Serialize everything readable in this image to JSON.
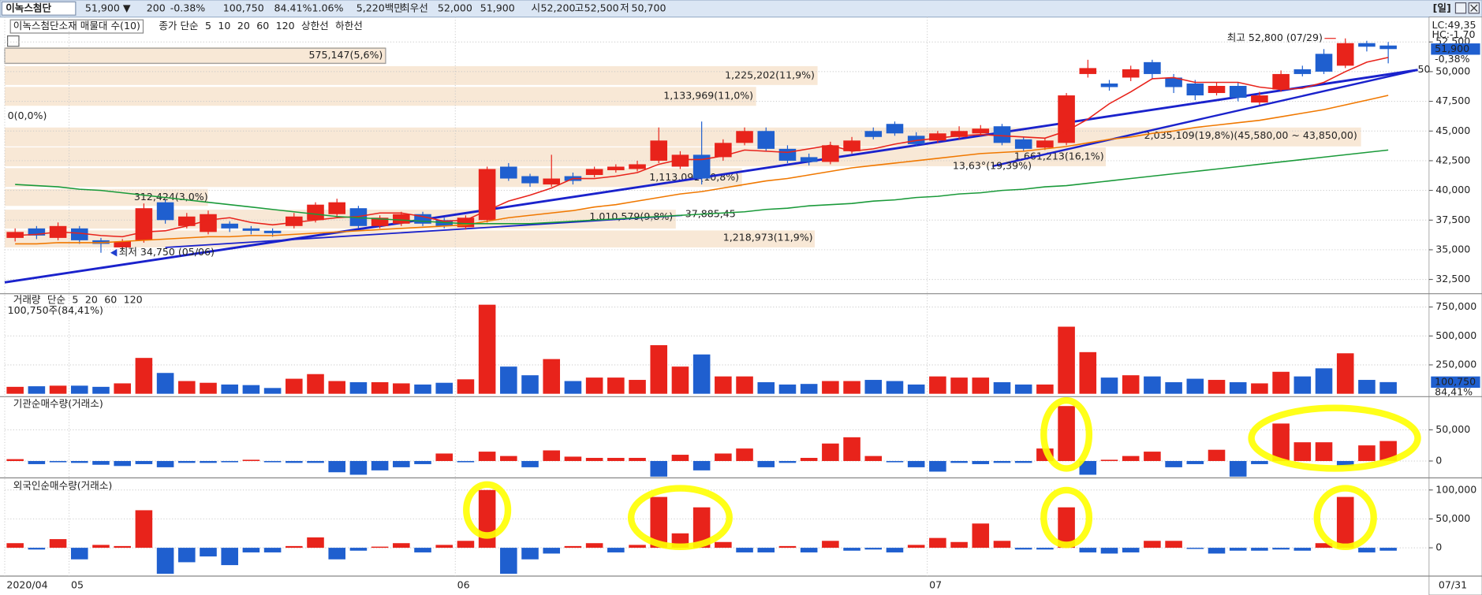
{
  "header": {
    "items": [
      "이녹스첨단",
      "51,900 ▼",
      "200",
      "-0.38%",
      "100,750",
      "84.41%",
      "1.06%",
      "5,220백만",
      "최우선",
      "52,000",
      "51,900",
      "시",
      "52,200",
      "고",
      "52,500",
      "저",
      "50,700"
    ],
    "period": "[일]"
  },
  "chart_data": [
    {
      "type": "candlestick",
      "title": "이녹스첨단소재 매물대 수(10)",
      "legend_label": "종가 단순",
      "categories": [
        "2020/04",
        null,
        null,
        "05",
        null,
        null,
        null,
        null,
        null,
        null,
        null,
        null,
        null,
        null,
        null,
        null,
        null,
        null,
        null,
        null,
        null,
        "06",
        null,
        null,
        null,
        null,
        null,
        null,
        null,
        null,
        null,
        null,
        null,
        null,
        null,
        null,
        null,
        null,
        null,
        null,
        null,
        null,
        null,
        "07",
        null,
        null,
        null,
        null,
        null,
        null,
        null,
        null,
        null,
        null,
        null,
        null,
        null,
        null,
        null,
        null,
        null,
        null,
        null,
        null,
        "07/31"
      ],
      "open": [
        36000,
        36800,
        36000,
        36800,
        35800,
        35200,
        35800,
        39000,
        37000,
        36500,
        37200,
        36800,
        36600,
        37000,
        37500,
        38000,
        38500,
        37000,
        37200,
        38000,
        37500,
        36900,
        37500,
        42000,
        41200,
        40500,
        41200,
        41300,
        41700,
        41800,
        42500,
        42000,
        43000,
        42800,
        44000,
        45000,
        43500,
        42800,
        42400,
        43300,
        45000,
        45600,
        44600,
        44200,
        44500,
        44800,
        45400,
        44300,
        43600,
        44000,
        49800,
        49000,
        49500,
        50800,
        49500,
        49000,
        48200,
        48800,
        47400,
        48500,
        50200,
        51500,
        50500,
        52400,
        52200
      ],
      "high": [
        36800,
        37000,
        37300,
        37000,
        36000,
        35900,
        38900,
        39200,
        38100,
        38300,
        37400,
        37000,
        36800,
        38100,
        39000,
        39300,
        38700,
        37900,
        38200,
        38200,
        37700,
        37900,
        42000,
        42300,
        41400,
        43000,
        41500,
        42000,
        42200,
        42500,
        45300,
        43300,
        45800,
        44300,
        45300,
        45300,
        43800,
        43100,
        44100,
        44500,
        45300,
        45800,
        44900,
        45000,
        45400,
        45500,
        45600,
        44500,
        44400,
        48200,
        51000,
        49300,
        50500,
        51000,
        49800,
        49300,
        49100,
        49100,
        48300,
        50100,
        50500,
        51900,
        52800,
        52600,
        52500
      ],
      "low": [
        35700,
        35900,
        35800,
        35500,
        34750,
        35000,
        35600,
        37200,
        36800,
        36300,
        36500,
        36300,
        36100,
        36800,
        37300,
        37800,
        36800,
        36800,
        37000,
        37000,
        36800,
        36700,
        37300,
        40800,
        40300,
        40300,
        40500,
        41100,
        41500,
        41600,
        42300,
        41800,
        40500,
        42500,
        43800,
        43300,
        42300,
        42100,
        42200,
        43100,
        44300,
        44600,
        43700,
        44000,
        44300,
        44600,
        43800,
        43300,
        43400,
        43800,
        49500,
        48400,
        49200,
        49400,
        48200,
        47600,
        48000,
        47500,
        47200,
        48300,
        49600,
        49800,
        50300,
        51700,
        50700
      ],
      "close": [
        36500,
        36200,
        37000,
        35800,
        35500,
        35700,
        38500,
        37500,
        37800,
        38000,
        36800,
        36600,
        36400,
        37800,
        38800,
        39000,
        37000,
        37700,
        38000,
        37200,
        37000,
        37700,
        41800,
        41000,
        40600,
        41000,
        40800,
        41800,
        42000,
        42200,
        44200,
        43000,
        41000,
        44000,
        45000,
        43500,
        42500,
        42400,
        43800,
        44200,
        44500,
        44800,
        43900,
        44800,
        45000,
        45200,
        44000,
        43500,
        44200,
        48000,
        50300,
        48700,
        50200,
        49800,
        48700,
        48000,
        48800,
        47800,
        48000,
        49800,
        49800,
        50000,
        52400,
        52100,
        51900
      ],
      "up_color": "#e8231b",
      "down_color": "#1f5fcf",
      "series": [
        {
          "name": "5",
          "color": "#e8231b",
          "values": [
            36200,
            36300,
            36500,
            36400,
            36200,
            36100,
            36500,
            36600,
            37000,
            37500,
            37700,
            37300,
            37100,
            37300,
            37500,
            37700,
            37800,
            38100,
            38100,
            37800,
            37400,
            37500,
            38300,
            39100,
            39600,
            40200,
            41000,
            41000,
            41200,
            41500,
            42200,
            42600,
            42600,
            42900,
            43400,
            43300,
            43200,
            43500,
            43800,
            43300,
            43500,
            43900,
            44200,
            44400,
            44600,
            44700,
            44600,
            44500,
            44400,
            45000,
            46000,
            47300,
            48300,
            49400,
            49500,
            49100,
            49100,
            49100,
            48700,
            48500,
            48600,
            49100,
            50000,
            50800,
            51200
          ]
        },
        {
          "name": "10",
          "color": "#1f3fcf"
        },
        {
          "name": "20",
          "color": "#f07800",
          "values": [
            35500,
            35500,
            35600,
            35600,
            35600,
            35700,
            35800,
            35900,
            36000,
            36100,
            36100,
            36200,
            36200,
            36300,
            36400,
            36500,
            36600,
            36700,
            36800,
            36900,
            37000,
            37100,
            37400,
            37700,
            37900,
            38100,
            38300,
            38600,
            38800,
            39100,
            39400,
            39700,
            39900,
            40200,
            40500,
            40800,
            41000,
            41300,
            41600,
            41900,
            42100,
            42300,
            42500,
            42700,
            42900,
            43100,
            43200,
            43300,
            43500,
            43700,
            44000,
            44300,
            44500,
            44800,
            45000,
            45300,
            45500,
            45700,
            45900,
            46200,
            46500,
            46800,
            47200,
            47600,
            48000
          ]
        },
        {
          "name": "60",
          "color": "#1a9a3a",
          "values": [
            40500,
            40400,
            40300,
            40100,
            40000,
            39800,
            39600,
            39400,
            39200,
            39000,
            38800,
            38600,
            38400,
            38200,
            38000,
            37800,
            37700,
            37600,
            37500,
            37400,
            37300,
            37200,
            37200,
            37200,
            37200,
            37300,
            37400,
            37500,
            37600,
            37700,
            37800,
            37900,
            38000,
            38100,
            38200,
            38400,
            38500,
            38700,
            38800,
            38900,
            39100,
            39200,
            39400,
            39500,
            39700,
            39800,
            40000,
            40100,
            40300,
            40400,
            40600,
            40800,
            41000,
            41200,
            41400,
            41600,
            41800,
            42000,
            42200,
            42400,
            42600,
            42800,
            43000,
            43200,
            43400
          ]
        },
        {
          "name": "120",
          "color": "#555555"
        },
        {
          "name": "상한선",
          "color": "#e8231b"
        },
        {
          "name": "하한선",
          "color": "#20a8c0"
        }
      ],
      "ylim": [
        31300,
        54600
      ],
      "yticks": [
        {
          "value": 32500,
          "label": "32,500"
        },
        {
          "value": 35000,
          "label": "35,000"
        },
        {
          "value": 37500,
          "label": "37,500"
        },
        {
          "value": 40000,
          "label": "40,000"
        },
        {
          "value": 42500,
          "label": "42,500"
        },
        {
          "value": 45000,
          "label": "45,000"
        },
        {
          "value": 47500,
          "label": "47,500"
        },
        {
          "value": 50000,
          "label": "50,000"
        },
        {
          "value": 52500,
          "label": "52,500"
        }
      ],
      "volume_profile": [
        "575,147(5,6%)",
        "1,225,202(11,9%)",
        "1,133,969(11,0%)",
        "0(0,0%)",
        "2,035,109(19,8%)(45,580,00 ~ 43,850,00)",
        "1,661,213(16,1%)",
        "1,113,091(10,8%)",
        "312,424(3,0%)",
        "1,010,579(9,8%)",
        "1,218,973(11,9%)"
      ],
      "annotations": {
        "high": "최고 52,800 (07/29)",
        "low": "최저 34,750 (05/06)",
        "trend_value": "37,885,45",
        "trend_end": "50",
        "angle": "13,63°(19,39%)"
      },
      "right_labels": {
        "lc": "LC:49,35",
        "hc": "HC:-1,70",
        "last": "51,900",
        "change": "-0,38%"
      }
    },
    {
      "type": "bar",
      "title": "거래량",
      "legend_label": "단순",
      "subtitle": "100,750주(84,41%)",
      "values": [
        60000,
        65000,
        70000,
        70000,
        60000,
        90000,
        310000,
        180000,
        110000,
        95000,
        80000,
        75000,
        50000,
        130000,
        170000,
        110000,
        100000,
        100000,
        90000,
        80000,
        95000,
        125000,
        770000,
        235000,
        160000,
        300000,
        110000,
        140000,
        140000,
        120000,
        420000,
        235000,
        340000,
        150000,
        150000,
        100000,
        80000,
        85000,
        110000,
        110000,
        120000,
        110000,
        80000,
        150000,
        140000,
        140000,
        100000,
        80000,
        80000,
        580000,
        360000,
        140000,
        160000,
        150000,
        100000,
        130000,
        120000,
        100000,
        90000,
        190000,
        150000,
        220000,
        350000,
        120000,
        100750
      ],
      "series": [
        {
          "name": "5",
          "color": "#d020d0"
        },
        {
          "name": "20",
          "color": "#e0a000"
        },
        {
          "name": "60",
          "color": "#1a9a3a"
        },
        {
          "name": "120",
          "color": "#888888"
        }
      ],
      "ylim": [
        -25000,
        865000
      ],
      "yticks": [
        {
          "value": 250000,
          "label": "250,000"
        },
        {
          "value": 500000,
          "label": "500,000"
        },
        {
          "value": 750000,
          "label": "750,000"
        }
      ],
      "last_label": "100,750",
      "last_pct": "84,41%"
    },
    {
      "type": "bar",
      "title": "기관순매수량(거래소)",
      "positive_color": "#e8231b",
      "negative_color": "#1f5fcf",
      "values": [
        3000,
        -5000,
        -2000,
        -3000,
        -6000,
        -8000,
        -5000,
        -10000,
        -3000,
        -3000,
        -2000,
        2000,
        -2000,
        -3000,
        -3000,
        -18000,
        -22000,
        -15000,
        -10000,
        -5000,
        12000,
        -2000,
        15000,
        8000,
        -10000,
        17000,
        7000,
        5000,
        5000,
        5000,
        -25000,
        10000,
        -15000,
        12000,
        20000,
        -10000,
        -3000,
        5000,
        28000,
        38000,
        8000,
        -2000,
        -10000,
        -17000,
        -3000,
        -5000,
        -3000,
        -3000,
        20000,
        88000,
        -22000,
        2000,
        8000,
        15000,
        -10000,
        -5000,
        18000,
        -25000,
        -5000,
        60000,
        30000,
        30000,
        -8000,
        25000,
        32000
      ],
      "ylim": [
        -27000,
        103000
      ],
      "yticks": [
        0,
        {
          "value": 50000,
          "label": "50,000"
        }
      ]
    },
    {
      "type": "bar",
      "title": "외국인순매수량(거래소)",
      "positive_color": "#e8231b",
      "negative_color": "#1f5fcf",
      "values": [
        8000,
        -3000,
        15000,
        -20000,
        5000,
        3000,
        65000,
        -45000,
        -25000,
        -15000,
        -30000,
        -8000,
        -8000,
        3000,
        18000,
        -20000,
        -5000,
        2000,
        8000,
        -8000,
        5000,
        12000,
        100000,
        -45000,
        -20000,
        -10000,
        3000,
        8000,
        -8000,
        5000,
        88000,
        25000,
        70000,
        10000,
        -8000,
        -8000,
        3000,
        -8000,
        12000,
        -5000,
        -3000,
        -8000,
        5000,
        17000,
        10000,
        42000,
        12000,
        -3000,
        -3000,
        70000,
        -8000,
        -10000,
        -8000,
        12000,
        12000,
        -2000,
        -10000,
        -5000,
        -5000,
        -3000,
        -5000,
        8000,
        88000,
        -8000,
        -5000
      ],
      "ylim": [
        -49000,
        121000
      ],
      "yticks": [
        0,
        {
          "value": 50000,
          "label": "50,000"
        },
        {
          "value": 100000,
          "label": "100,000"
        }
      ]
    }
  ]
}
